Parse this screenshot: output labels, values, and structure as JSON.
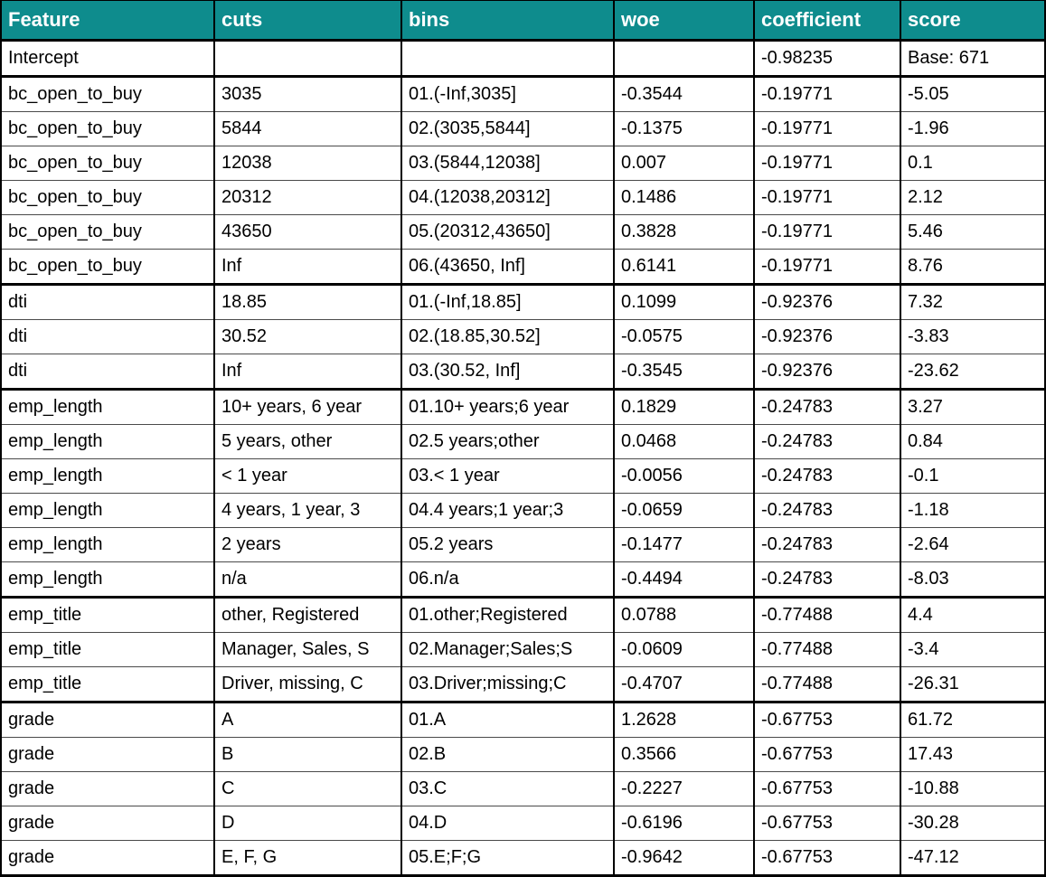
{
  "colors": {
    "header_bg": "#0e8c8d",
    "header_text": "#ffffff",
    "grid_strong": "#000000",
    "grid_thin": "#4a4a4a"
  },
  "table": {
    "columns": [
      "Feature",
      "cuts",
      "bins",
      "woe",
      "coefficient",
      "score"
    ],
    "rows": [
      {
        "cells": [
          "Intercept",
          "",
          "",
          "",
          "-0.98235",
          "Base: 671"
        ]
      },
      {
        "cells": [
          "bc_open_to_buy",
          "3035",
          "01.(-Inf,3035]",
          "-0.3544",
          "-0.19771",
          "-5.05"
        ]
      },
      {
        "cells": [
          "bc_open_to_buy",
          "5844",
          "02.(3035,5844]",
          "-0.1375",
          "-0.19771",
          "-1.96"
        ]
      },
      {
        "cells": [
          "bc_open_to_buy",
          "12038",
          "03.(5844,12038]",
          "0.007",
          "-0.19771",
          "0.1"
        ]
      },
      {
        "cells": [
          "bc_open_to_buy",
          "20312",
          "04.(12038,20312]",
          "0.1486",
          "-0.19771",
          "2.12"
        ]
      },
      {
        "cells": [
          "bc_open_to_buy",
          "43650",
          "05.(20312,43650]",
          "0.3828",
          "-0.19771",
          "5.46"
        ]
      },
      {
        "cells": [
          "bc_open_to_buy",
          "Inf",
          "06.(43650, Inf]",
          "0.6141",
          "-0.19771",
          "8.76"
        ]
      },
      {
        "cells": [
          "dti",
          "18.85",
          "01.(-Inf,18.85]",
          "0.1099",
          "-0.92376",
          "7.32"
        ]
      },
      {
        "cells": [
          "dti",
          "30.52",
          "02.(18.85,30.52]",
          "-0.0575",
          "-0.92376",
          "-3.83"
        ]
      },
      {
        "cells": [
          "dti",
          "Inf",
          "03.(30.52, Inf]",
          "-0.3545",
          "-0.92376",
          "-23.62"
        ]
      },
      {
        "cells": [
          "emp_length",
          "10+ years, 6 year",
          "01.10+ years;6 year",
          "0.1829",
          "-0.24783",
          "3.27"
        ]
      },
      {
        "cells": [
          "emp_length",
          "5 years, other",
          "02.5 years;other",
          "0.0468",
          "-0.24783",
          "0.84"
        ]
      },
      {
        "cells": [
          "emp_length",
          "< 1 year",
          "03.< 1 year",
          "-0.0056",
          "-0.24783",
          "-0.1"
        ]
      },
      {
        "cells": [
          "emp_length",
          "4 years, 1 year, 3",
          "04.4 years;1 year;3",
          "-0.0659",
          "-0.24783",
          "-1.18"
        ]
      },
      {
        "cells": [
          "emp_length",
          "2 years",
          "05.2 years",
          "-0.1477",
          "-0.24783",
          "-2.64"
        ]
      },
      {
        "cells": [
          "emp_length",
          "n/a",
          "06.n/a",
          "-0.4494",
          "-0.24783",
          "-8.03"
        ]
      },
      {
        "cells": [
          "emp_title",
          "other, Registered",
          "01.other;Registered",
          "0.0788",
          "-0.77488",
          "4.4"
        ]
      },
      {
        "cells": [
          "emp_title",
          "Manager, Sales, S",
          "02.Manager;Sales;S",
          "-0.0609",
          "-0.77488",
          "-3.4"
        ]
      },
      {
        "cells": [
          "emp_title",
          "Driver, missing, C",
          "03.Driver;missing;C",
          "-0.4707",
          "-0.77488",
          "-26.31"
        ]
      },
      {
        "cells": [
          "grade",
          "A",
          "01.A",
          "1.2628",
          "-0.67753",
          "61.72"
        ]
      },
      {
        "cells": [
          "grade",
          "B",
          "02.B",
          "0.3566",
          "-0.67753",
          "17.43"
        ]
      },
      {
        "cells": [
          "grade",
          "C",
          "03.C",
          "-0.2227",
          "-0.67753",
          "-10.88"
        ]
      },
      {
        "cells": [
          "grade",
          "D",
          "04.D",
          "-0.6196",
          "-0.67753",
          "-30.28"
        ]
      },
      {
        "cells": [
          "grade",
          "E, F, G",
          "05.E;F;G",
          "-0.9642",
          "-0.67753",
          "-47.12"
        ]
      }
    ]
  }
}
